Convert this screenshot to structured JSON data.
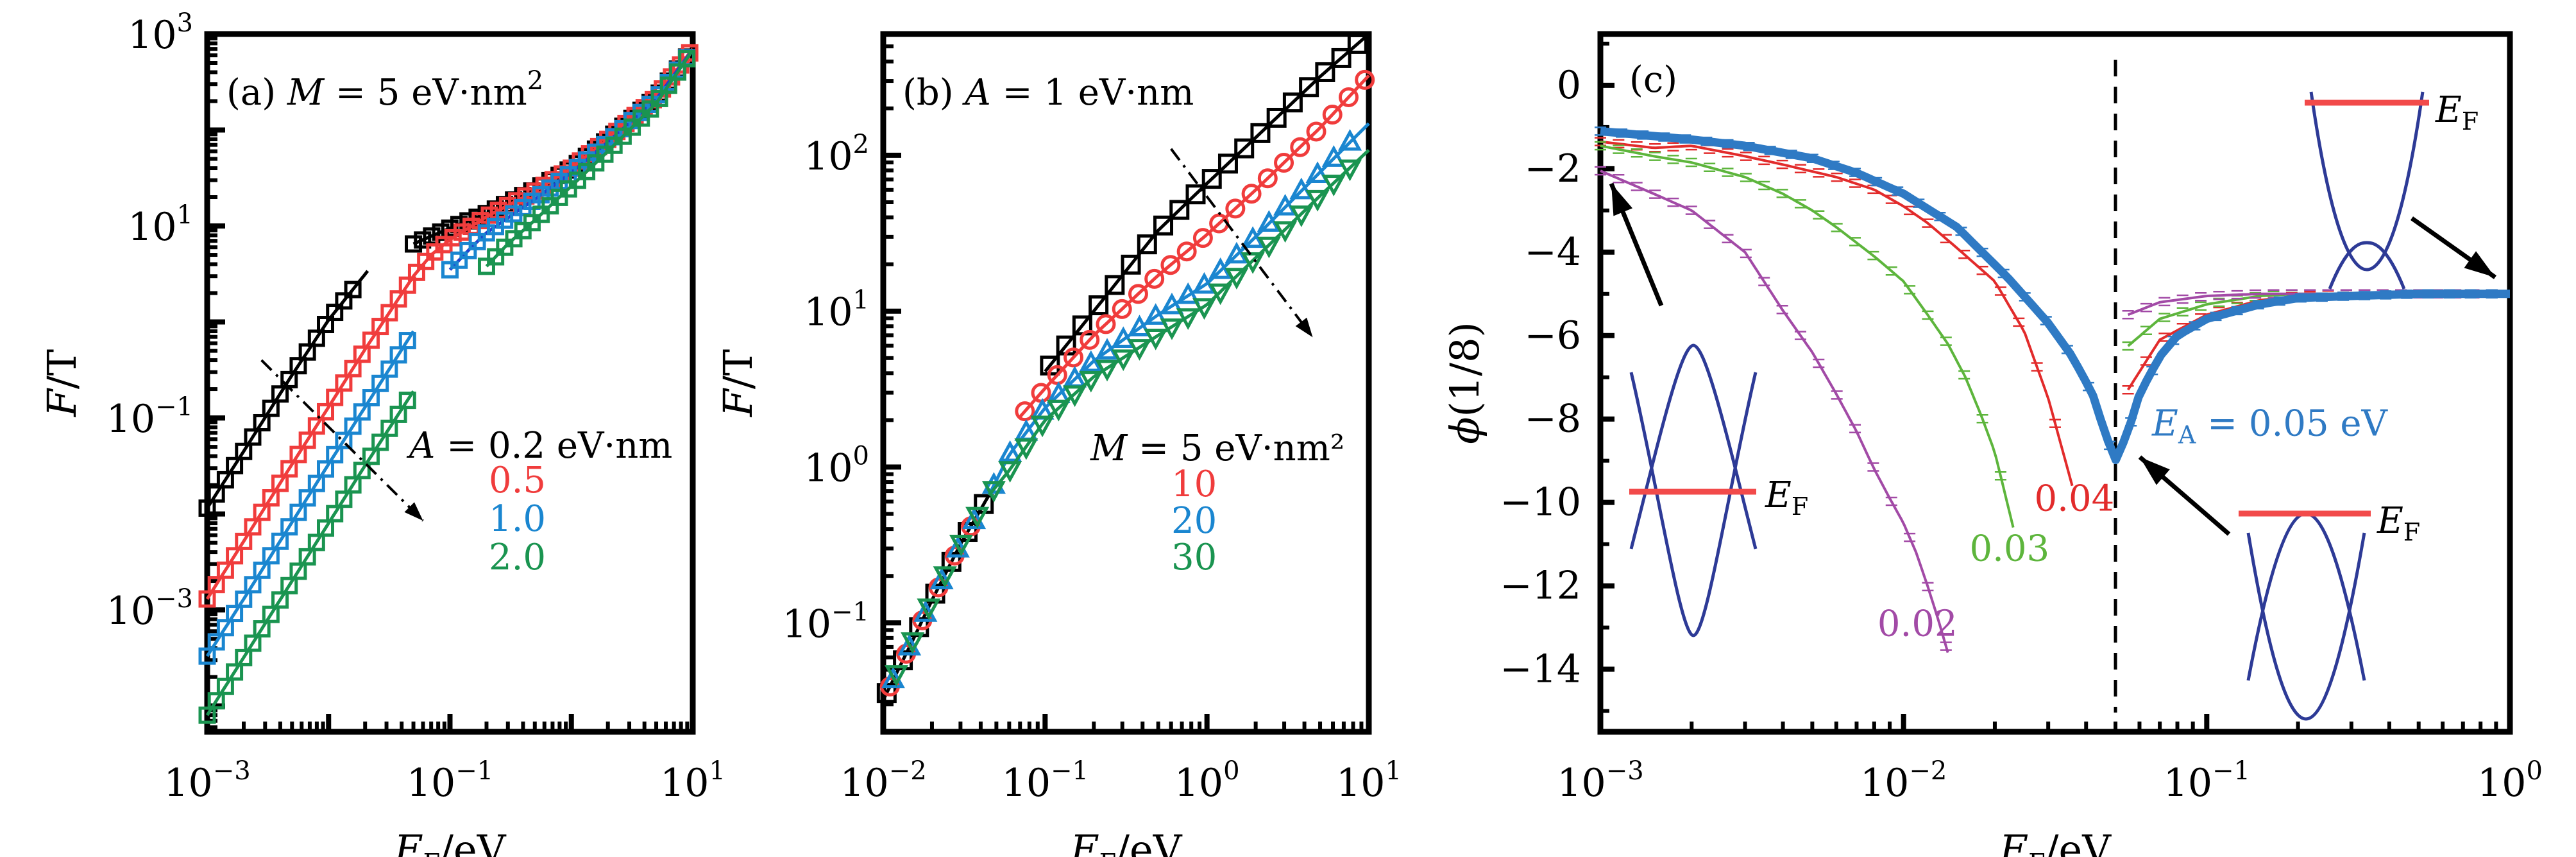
{
  "figure": {
    "panels": [
      "a",
      "b",
      "c"
    ]
  },
  "chart_data": [
    {
      "id": "a",
      "type": "line",
      "title": "(a) M = 5 eV·nm²",
      "panel_label": "(a)",
      "annotation": {
        "var": "M",
        "eq": " = 5 eV·nm",
        "sup": "2"
      },
      "xlabel": {
        "main": "E",
        "sub": "F",
        "rest": "/eV"
      },
      "ylabel": "F/T",
      "xscale": "log",
      "yscale": "log",
      "xlim": [
        0.001,
        10
      ],
      "ylim": [
        5.37e-05,
        1000
      ],
      "xticks": [
        {
          "v": 0.001,
          "base": "10",
          "exp": "−3"
        },
        {
          "v": 0.1,
          "base": "10",
          "exp": "−1"
        },
        {
          "v": 10,
          "base": "10",
          "exp": "1"
        }
      ],
      "yticks": [
        {
          "v": 0.001,
          "base": "10",
          "exp": "−3"
        },
        {
          "v": 0.1,
          "base": "10",
          "exp": "−1"
        },
        {
          "v": 10,
          "base": "10",
          "exp": "1"
        },
        {
          "v": 1000,
          "base": "10",
          "exp": "3"
        }
      ],
      "legend": {
        "header": {
          "var": "A",
          "rest": " = 0.2 eV·nm",
          "color": "#000000"
        },
        "entries": [
          {
            "label": "0.5",
            "color": "#f03c3c"
          },
          {
            "label": "1.0",
            "color": "#1a86d0"
          },
          {
            "label": "2.0",
            "color": "#1a9450"
          }
        ],
        "placement": "center-right"
      },
      "arrow": {
        "from": [
          0.0028,
          0.4
        ],
        "to": [
          0.06,
          0.0085
        ],
        "style": "dash-dot",
        "meaning": "increasing A"
      },
      "series": [
        {
          "name": "A = 0.2 eV·nm",
          "color": "#000000",
          "marker": "square",
          "branches": [
            {
              "x": [
                0.001,
                0.002,
                0.005,
                0.01,
                0.021
              ],
              "y": [
                0.0115,
                0.045,
                0.28,
                1.05,
                3.4
              ],
              "markers_until": 0.016
            },
            {
              "x": [
                0.05,
                0.1,
                0.2,
                0.5,
                1,
                2,
                5,
                10
              ],
              "y": [
                6.5,
                9.5,
                13.5,
                24,
                40,
                80,
                220,
                700
              ]
            }
          ]
        },
        {
          "name": "A = 0.5 eV·nm",
          "color": "#f03c3c",
          "marker": "square",
          "branches": [
            {
              "x": [
                0.001,
                0.002,
                0.005,
                0.01,
                0.02,
                0.05,
                0.07,
                0.1,
                0.2,
                0.5,
                1,
                2,
                5,
                10
              ],
              "y": [
                0.0013,
                0.0052,
                0.033,
                0.13,
                0.52,
                3.0,
                5.0,
                7.2,
                12.5,
                23,
                40,
                80,
                220,
                700
              ]
            }
          ]
        },
        {
          "name": "A = 1.0 eV·nm",
          "color": "#1a86d0",
          "marker": "square",
          "line_color": "#1f3fd0",
          "branches": [
            {
              "x": [
                0.001,
                0.002,
                0.005,
                0.01,
                0.02,
                0.05
              ],
              "y": [
                0.00033,
                0.0013,
                0.0082,
                0.033,
                0.13,
                0.8
              ]
            },
            {
              "x": [
                0.1,
                0.15,
                0.2,
                0.5,
                1,
                2,
                5,
                10
              ],
              "y": [
                3.5,
                6.0,
                8.5,
                19,
                36,
                75,
                210,
                690
              ]
            }
          ]
        },
        {
          "name": "A = 2.0 eV·nm",
          "color": "#1a9450",
          "marker": "square",
          "branches": [
            {
              "x": [
                0.001,
                0.002,
                0.005,
                0.01,
                0.02,
                0.05
              ],
              "y": [
                8e-05,
                0.00032,
                0.002,
                0.008,
                0.032,
                0.19
              ]
            },
            {
              "x": [
                0.2,
                0.3,
                0.5,
                1,
                2,
                5,
                10
              ],
              "y": [
                3.8,
                6.5,
                11.5,
                26,
                60,
                190,
                680
              ]
            }
          ]
        }
      ]
    },
    {
      "id": "b",
      "type": "line",
      "title": "(b) A = 1 eV·nm",
      "panel_label": "(b)",
      "annotation": {
        "var": "A",
        "eq": " = 1 eV·nm",
        "sup": ""
      },
      "xlabel": {
        "main": "E",
        "sub": "F",
        "rest": "/eV"
      },
      "ylabel": "F/T",
      "xscale": "log",
      "yscale": "log",
      "xlim": [
        0.01,
        10
      ],
      "ylim": [
        0.02,
        600
      ],
      "xticks": [
        {
          "v": 0.01,
          "base": "10",
          "exp": "−2"
        },
        {
          "v": 0.1,
          "base": "10",
          "exp": "−1"
        },
        {
          "v": 1,
          "base": "10",
          "exp": "0"
        },
        {
          "v": 10,
          "base": "10",
          "exp": "1"
        }
      ],
      "yticks": [
        {
          "v": 0.1,
          "base": "10",
          "exp": "−1"
        },
        {
          "v": 1,
          "base": "10",
          "exp": "0"
        },
        {
          "v": 10,
          "base": "10",
          "exp": "1"
        },
        {
          "v": 100,
          "base": "10",
          "exp": "2"
        }
      ],
      "legend": {
        "header": {
          "var": "M",
          "rest": " = 5 eV·nm²",
          "color": "#000000"
        },
        "entries": [
          {
            "label": "10",
            "color": "#f03c3c"
          },
          {
            "label": "20",
            "color": "#1a86d0"
          },
          {
            "label": "30",
            "color": "#1a9450"
          }
        ],
        "placement": "center-right"
      },
      "arrow": {
        "from": [
          0.6,
          110
        ],
        "to": [
          4.5,
          6.8
        ],
        "style": "dash-dot",
        "meaning": "increasing M"
      },
      "low_branch": {
        "x": [
          0.01,
          0.015,
          0.02,
          0.03,
          0.045
        ],
        "y": [
          0.032,
          0.075,
          0.14,
          0.32,
          0.66
        ],
        "color": "#000000"
      },
      "series": [
        {
          "name": "M = 5 eV·nm²",
          "color": "#000000",
          "marker": "square",
          "x": [
            0.1,
            0.2,
            0.5,
            1,
            2,
            5,
            10
          ],
          "y": [
            4.1,
            10,
            33,
            66,
            130,
            320,
            600
          ]
        },
        {
          "name": "M = 10",
          "color": "#f03c3c",
          "marker": "circle",
          "x": [
            0.07,
            0.1,
            0.2,
            0.5,
            1,
            2,
            5,
            10
          ],
          "y": [
            2.1,
            3.2,
            7,
            17,
            31,
            60,
            150,
            325
          ]
        },
        {
          "name": "M = 20",
          "color": "#1a86d0",
          "marker": "triangle-up",
          "x": [
            0.045,
            0.06,
            0.1,
            0.2,
            0.5,
            1,
            2,
            5,
            10
          ],
          "y": [
            0.66,
            1.2,
            2.4,
            4.8,
            9.5,
            15,
            30,
            78,
            160
          ]
        },
        {
          "name": "M = 30",
          "color": "#1a9450",
          "marker": "triangle-down",
          "x": [
            0.045,
            0.06,
            0.1,
            0.2,
            0.5,
            1,
            2,
            5,
            10
          ],
          "y": [
            0.66,
            0.95,
            2.0,
            3.8,
            7,
            11,
            22,
            55,
            108
          ]
        }
      ]
    },
    {
      "id": "c",
      "type": "line",
      "title": "(c)",
      "panel_label": "(c)",
      "xlabel": {
        "main": "E",
        "sub": "F",
        "rest": "/eV"
      },
      "ylabel": "ϕ(1/8)",
      "xscale": "log",
      "yscale": "linear",
      "xlim": [
        0.001,
        1
      ],
      "ylim": [
        -15.5,
        1.23
      ],
      "xticks": [
        {
          "v": 0.001,
          "base": "10",
          "exp": "−3"
        },
        {
          "v": 0.01,
          "base": "10",
          "exp": "−2"
        },
        {
          "v": 0.1,
          "base": "10",
          "exp": "−1"
        },
        {
          "v": 1,
          "base": "10",
          "exp": "0"
        }
      ],
      "yticks": [
        0,
        -2,
        -4,
        -6,
        -8,
        -10,
        -12,
        -14
      ],
      "ytick_labels": [
        "0",
        "−2",
        "−4",
        "−6",
        "−8",
        "−10",
        "−12",
        "−14"
      ],
      "vline": {
        "x": 0.05,
        "style": "dashed",
        "color": "#000000"
      },
      "series": [
        {
          "name": "E_A = 0.05 eV",
          "label": "E_A = 0.05 eV",
          "color": "#2f7ac4",
          "thick": true,
          "x": [
            0.001,
            0.002,
            0.003,
            0.005,
            0.007,
            0.01,
            0.015,
            0.022,
            0.03,
            0.036,
            0.042,
            0.046,
            0.05,
            0.055,
            0.06,
            0.07,
            0.08,
            0.1,
            0.15,
            0.2,
            0.3,
            0.5,
            1
          ],
          "y": [
            -1.1,
            -1.3,
            -1.45,
            -1.75,
            -2.1,
            -2.6,
            -3.4,
            -4.6,
            -5.7,
            -6.5,
            -7.4,
            -8.3,
            -9.0,
            -8.3,
            -7.4,
            -6.5,
            -6.0,
            -5.6,
            -5.25,
            -5.1,
            -5.05,
            -5.0,
            -5.0
          ]
        },
        {
          "name": "0.04",
          "label": "0.04",
          "color": "#e22b2b",
          "branches": [
            {
              "x": [
                0.001,
                0.0015,
                0.002,
                0.003,
                0.004,
                0.006,
                0.008,
                0.01,
                0.012,
                0.015,
                0.02,
                0.025,
                0.03,
                0.036
              ],
              "y": [
                -1.35,
                -1.5,
                -1.45,
                -1.7,
                -1.9,
                -2.2,
                -2.5,
                -2.9,
                -3.3,
                -3.9,
                -4.7,
                -5.9,
                -7.5,
                -9.6
              ]
            },
            {
              "x": [
                0.055,
                0.07,
                0.1,
                0.15,
                0.2,
                0.3,
                0.5,
                1
              ],
              "y": [
                -7.3,
                -6.1,
                -5.5,
                -5.15,
                -5.05,
                -5.0,
                -5.0,
                -5.0
              ]
            }
          ]
        },
        {
          "name": "0.03",
          "label": "0.03",
          "color": "#5db53c",
          "branches": [
            {
              "x": [
                0.001,
                0.0015,
                0.002,
                0.003,
                0.004,
                0.005,
                0.006,
                0.008,
                0.01,
                0.012,
                0.014,
                0.016,
                0.018,
                0.02,
                0.023
              ],
              "y": [
                -1.45,
                -1.7,
                -1.85,
                -2.2,
                -2.6,
                -3.0,
                -3.4,
                -4.1,
                -4.7,
                -5.5,
                -6.2,
                -7.0,
                -7.9,
                -8.8,
                -10.6
              ]
            },
            {
              "x": [
                0.055,
                0.07,
                0.1,
                0.15,
                0.2,
                0.3,
                0.5,
                1
              ],
              "y": [
                -6.25,
                -5.6,
                -5.25,
                -5.05,
                -5.0,
                -5.0,
                -5.0,
                -5.0
              ]
            }
          ]
        },
        {
          "name": "0.02",
          "label": "0.02",
          "color": "#a24aa6",
          "branches": [
            {
              "x": [
                0.001,
                0.0015,
                0.002,
                0.003,
                0.004,
                0.005,
                0.006,
                0.007,
                0.008,
                0.009,
                0.01,
                0.011,
                0.012,
                0.013,
                0.014
              ],
              "y": [
                -2.05,
                -2.6,
                -3.0,
                -4.0,
                -5.4,
                -6.4,
                -7.4,
                -8.3,
                -9.2,
                -9.9,
                -10.5,
                -11.2,
                -12.0,
                -12.8,
                -13.6
              ]
            },
            {
              "x": [
                0.055,
                0.07,
                0.1,
                0.15,
                0.2,
                0.3,
                0.5,
                1
              ],
              "y": [
                -5.5,
                -5.2,
                -5.05,
                -5.0,
                -5.0,
                -5.0,
                -5.0,
                -5.0
              ]
            }
          ]
        }
      ],
      "labels": [
        {
          "text": "0.04",
          "color": "#e22b2b",
          "at": [
            0.027,
            -10.2
          ]
        },
        {
          "text": "0.03",
          "color": "#5db53c",
          "at": [
            0.0165,
            -11.4
          ]
        },
        {
          "text": "0.02",
          "color": "#a24aa6",
          "at": [
            0.0082,
            -13.2
          ]
        },
        {
          "text": "E",
          "sub": "A",
          "rest": " = 0.05 eV",
          "color": "#2f7ac4",
          "at": [
            0.066,
            -8.4
          ]
        }
      ],
      "insets": [
        {
          "id": "left-inset",
          "description": "two crossing bands, E_F through crossings",
          "ef_label": {
            "main": "E",
            "sub": "F"
          }
        },
        {
          "id": "top-right-inset",
          "description": "parabolic band with small crossing at bottom, E_F high",
          "ef_label": {
            "main": "E",
            "sub": "F"
          }
        },
        {
          "id": "bottom-right-inset",
          "description": "crossing bands, E_F at top of inner band",
          "ef_label": {
            "main": "E",
            "sub": "F"
          }
        }
      ],
      "inset_colors": {
        "band": "#2d3a96",
        "fermi": "#f24a4a"
      },
      "arrows": [
        {
          "from": [
            0.0019,
            -5.5
          ],
          "to": [
            0.00112,
            -2.4
          ],
          "meaning": "points from left inset to low-E curve"
        },
        {
          "from": [
            0.12,
            -11.0
          ],
          "to": [
            0.055,
            -9.3
          ],
          "meaning": "points from bottom-right inset to dip"
        },
        {
          "from": [
            0.45,
            -3.2
          ],
          "to": [
            0.95,
            -4.9
          ],
          "meaning": "points from top-right inset to plateau"
        }
      ]
    }
  ]
}
